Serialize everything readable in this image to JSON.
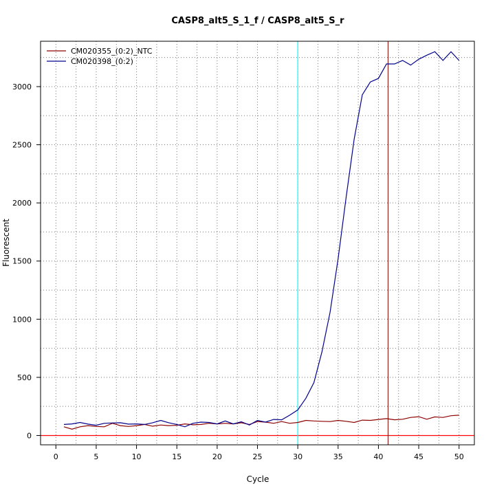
{
  "chart_data": {
    "type": "line",
    "title": "CASP8_alt5_S_1_f / CASP8_alt5_S_r",
    "xlabel": "Cycle",
    "ylabel": "Fluorescent",
    "xlim": [
      -1.9,
      51.9
    ],
    "ylim": [
      -80,
      3390
    ],
    "xticks": [
      0,
      5,
      10,
      15,
      20,
      25,
      30,
      35,
      40,
      45,
      50
    ],
    "xtick_labels": [
      "0",
      "5",
      "10",
      "15",
      "20",
      "25",
      "30",
      "35",
      "40",
      "45",
      "50"
    ],
    "yticks": [
      0,
      500,
      1000,
      1500,
      2000,
      2500,
      3000
    ],
    "ytick_labels": [
      "0",
      "500",
      "1000",
      "1500",
      "2000",
      "2500",
      "3000"
    ],
    "grid": true,
    "legend_position": "top-left",
    "series": [
      {
        "name": "CM020355_(0:2)_NTC",
        "color": "#8b0000",
        "x": [
          1,
          2,
          3,
          4,
          5,
          6,
          7,
          8,
          9,
          10,
          11,
          12,
          13,
          14,
          15,
          16,
          17,
          18,
          19,
          20,
          21,
          22,
          23,
          24,
          25,
          26,
          27,
          28,
          29,
          30,
          31,
          32,
          33,
          34,
          35,
          36,
          37,
          38,
          39,
          40,
          41,
          42,
          43,
          44,
          45,
          46,
          47,
          48,
          49,
          50
        ],
        "y": [
          75,
          55,
          75,
          85,
          78,
          75,
          105,
          85,
          78,
          85,
          95,
          80,
          90,
          85,
          88,
          100,
          92,
          95,
          105,
          100,
          105,
          100,
          110,
          95,
          120,
          115,
          105,
          120,
          105,
          112,
          130,
          125,
          122,
          120,
          130,
          122,
          112,
          132,
          130,
          138,
          145,
          135,
          140,
          155,
          162,
          140,
          160,
          155,
          170,
          175
        ]
      },
      {
        "name": "CM020398_(0:2)",
        "color": "#00008b",
        "x": [
          1,
          2,
          3,
          4,
          5,
          6,
          7,
          8,
          9,
          10,
          11,
          12,
          13,
          14,
          15,
          16,
          17,
          18,
          19,
          20,
          21,
          22,
          23,
          24,
          25,
          26,
          27,
          28,
          29,
          30,
          31,
          32,
          33,
          34,
          35,
          36,
          37,
          38,
          39,
          40,
          41,
          42,
          43,
          44,
          45,
          46,
          47,
          48,
          49,
          50
        ],
        "y": [
          95,
          100,
          112,
          98,
          88,
          105,
          108,
          110,
          98,
          100,
          95,
          110,
          130,
          110,
          95,
          75,
          105,
          115,
          112,
          100,
          125,
          100,
          118,
          90,
          130,
          115,
          138,
          135,
          175,
          220,
          320,
          455,
          720,
          1060,
          1520,
          2050,
          2550,
          2930,
          3040,
          3070,
          3195,
          3195,
          3225,
          3185,
          3235,
          3270,
          3300,
          3225,
          3300,
          3225
        ]
      }
    ],
    "reference_lines": [
      {
        "orientation": "horizontal",
        "value": 0,
        "color": "#ff0000"
      },
      {
        "orientation": "vertical",
        "value": 30,
        "color": "#00ffff"
      },
      {
        "orientation": "vertical",
        "value": 41.2,
        "color": "#8b2323"
      }
    ]
  }
}
